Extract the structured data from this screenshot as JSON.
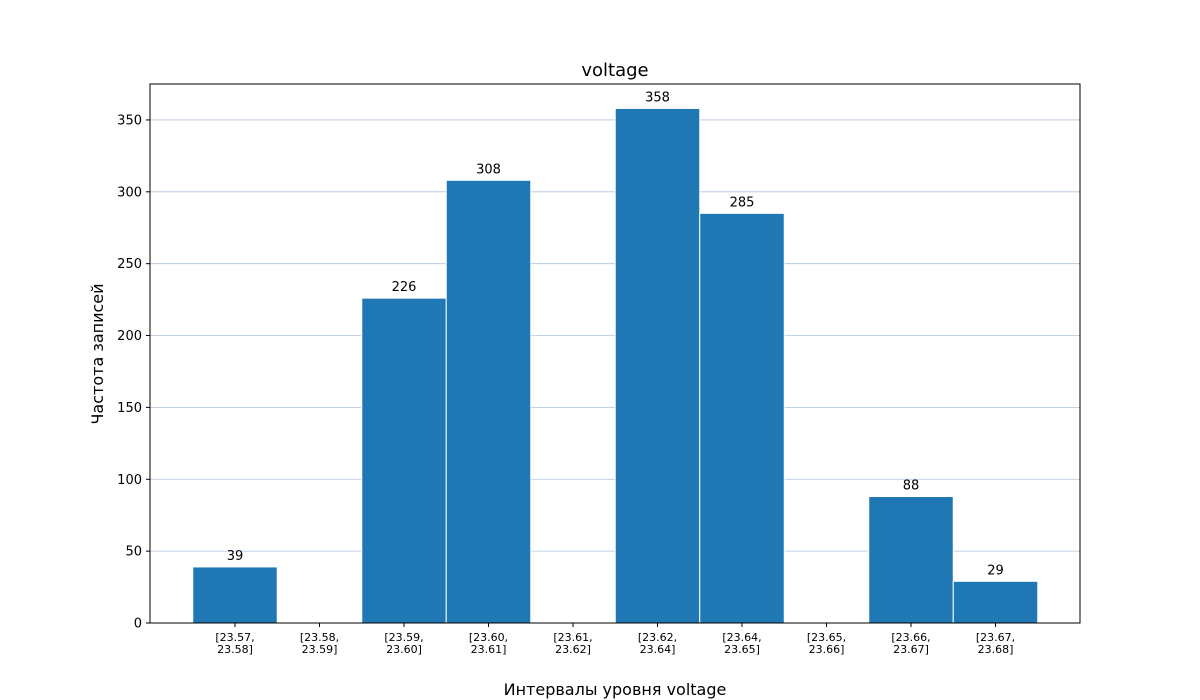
{
  "chart_data": {
    "type": "bar",
    "title": "voltage",
    "xlabel": "Интервалы уровня voltage",
    "ylabel": "Частота записей",
    "categories": [
      [
        "[23.57,",
        "23.58]"
      ],
      [
        "[23.58,",
        "23.59]"
      ],
      [
        "[23.59,",
        "23.60]"
      ],
      [
        "[23.60,",
        "23.61]"
      ],
      [
        "[23.61,",
        "23.62]"
      ],
      [
        "[23.62,",
        "23.64]"
      ],
      [
        "[23.64,",
        "23.65]"
      ],
      [
        "[23.65,",
        "23.66]"
      ],
      [
        "[23.66,",
        "23.67]"
      ],
      [
        "[23.67,",
        "23.68]"
      ]
    ],
    "values": [
      39,
      0,
      226,
      308,
      0,
      358,
      285,
      0,
      88,
      29
    ],
    "data_labels": [
      "39",
      "",
      "226",
      "308",
      "",
      "358",
      "285",
      "",
      "88",
      "29"
    ],
    "ylim": [
      0,
      375
    ],
    "yticks": [
      0,
      50,
      100,
      150,
      200,
      250,
      300,
      350
    ],
    "grid": "y",
    "bar_color": "#1f77b4",
    "bar_edge_color": "#ffffff",
    "grid_color": "#b0c4de"
  }
}
